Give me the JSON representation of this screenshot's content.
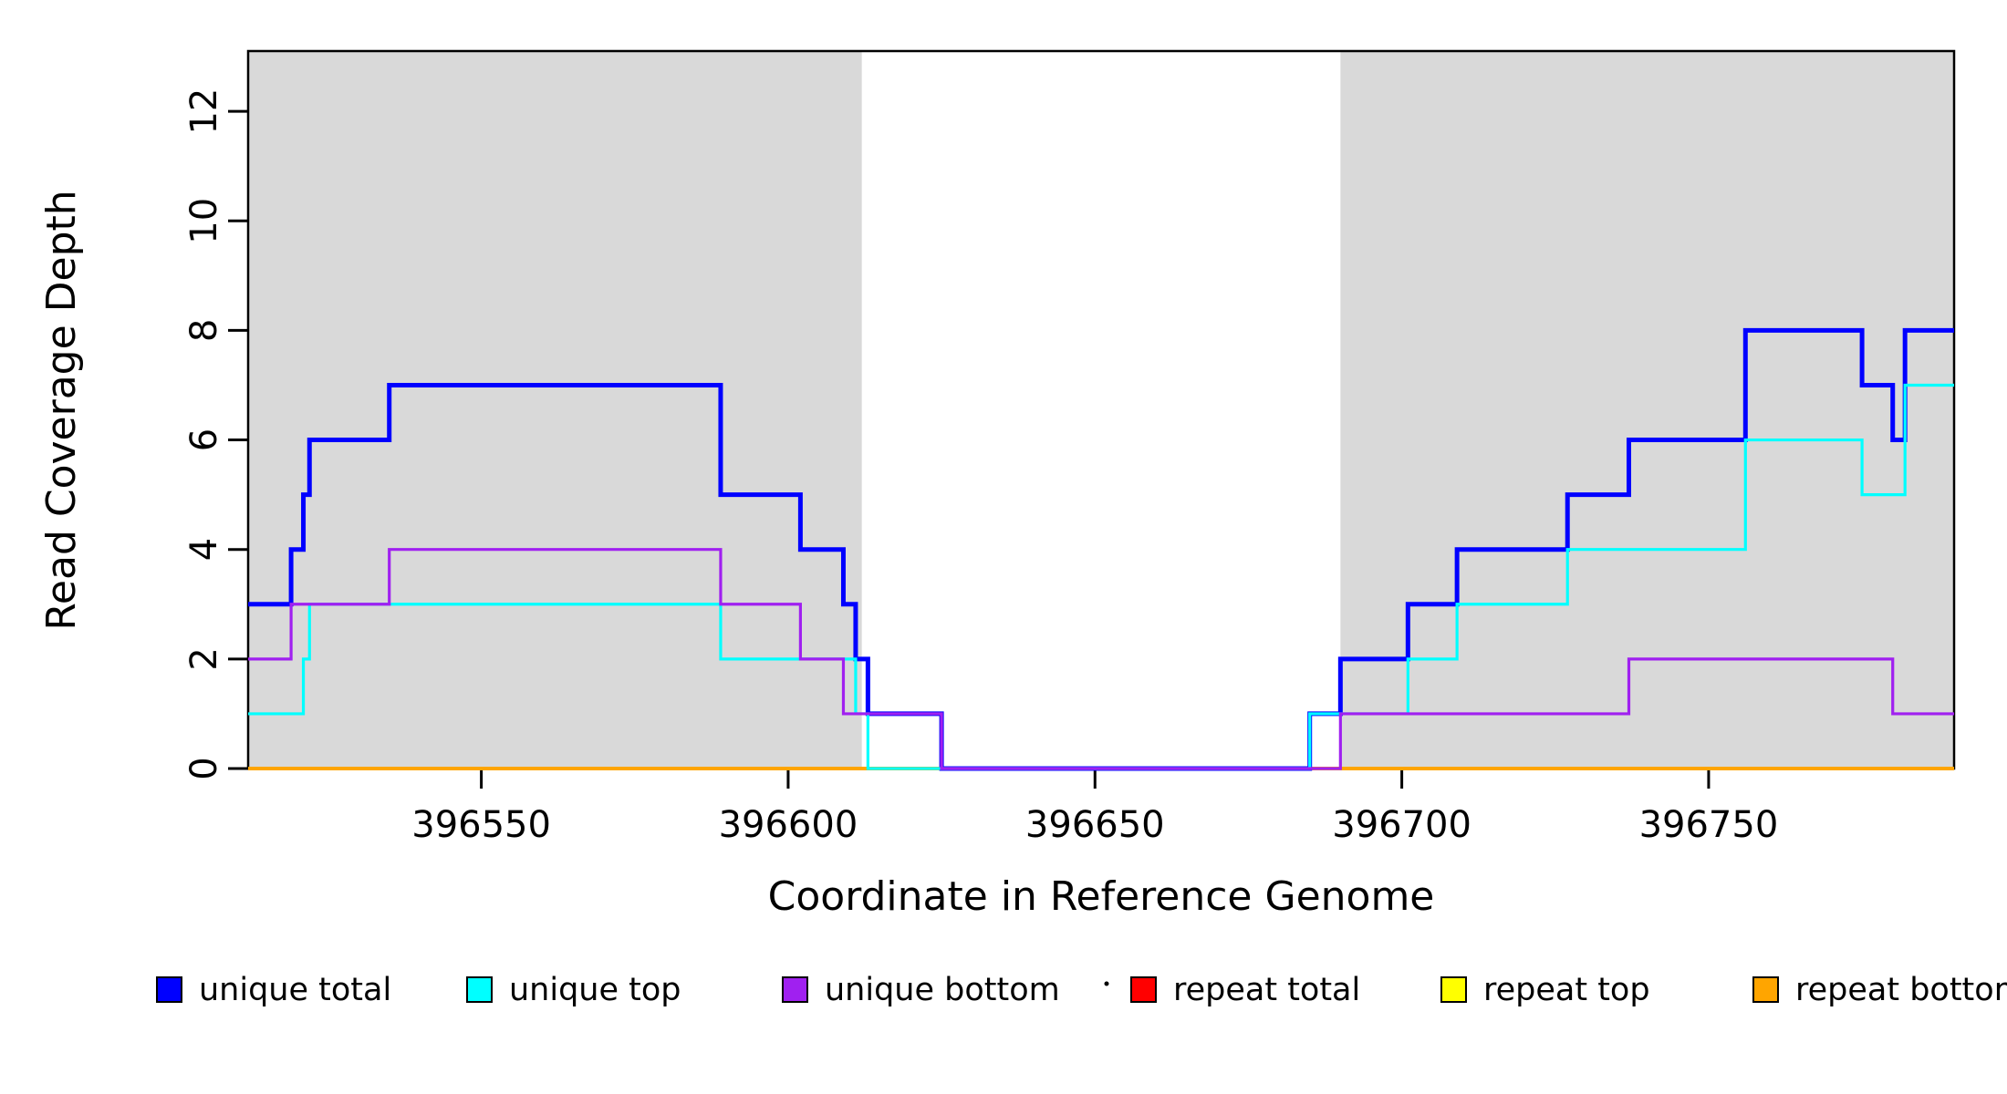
{
  "figure": {
    "background": "#FFFFFF",
    "plot_box_color": "#000000",
    "shaded_region_color": "#D9D9D9"
  },
  "chart_data": {
    "type": "line",
    "subtype": "step",
    "title": "",
    "xlabel": "Coordinate in Reference Genome",
    "ylabel": "Read Coverage Depth",
    "xlim": [
      396512,
      396790
    ],
    "ylim": [
      0,
      13.1
    ],
    "x_ticks": [
      396550,
      396600,
      396650,
      396700,
      396750
    ],
    "y_ticks": [
      0,
      2,
      4,
      6,
      8,
      10,
      12
    ],
    "grid": false,
    "legend_position": "bottom",
    "shaded_regions": [
      {
        "x0": 396512,
        "x1": 396612
      },
      {
        "x0": 396690,
        "x1": 396790
      }
    ],
    "series": [
      {
        "name": "unique total",
        "color": "#0000FF",
        "width": 5,
        "steps": [
          [
            396512,
            3
          ],
          [
            396519,
            4
          ],
          [
            396521,
            5
          ],
          [
            396522,
            6
          ],
          [
            396535,
            7
          ],
          [
            396589,
            5
          ],
          [
            396602,
            4
          ],
          [
            396609,
            3
          ],
          [
            396611,
            2
          ],
          [
            396613,
            1
          ],
          [
            396625,
            0
          ],
          [
            396685,
            1
          ],
          [
            396690,
            2
          ],
          [
            396701,
            3
          ],
          [
            396709,
            4
          ],
          [
            396727,
            5
          ],
          [
            396737,
            6
          ],
          [
            396756,
            8
          ],
          [
            396775,
            7
          ],
          [
            396780,
            6
          ],
          [
            396782,
            8
          ]
        ]
      },
      {
        "name": "unique top",
        "color": "#00FFFF",
        "width": 3.2,
        "steps": [
          [
            396512,
            1
          ],
          [
            396521,
            2
          ],
          [
            396522,
            3
          ],
          [
            396589,
            2
          ],
          [
            396611,
            1
          ],
          [
            396613,
            0
          ],
          [
            396685,
            1
          ],
          [
            396701,
            2
          ],
          [
            396709,
            3
          ],
          [
            396727,
            4
          ],
          [
            396756,
            6
          ],
          [
            396775,
            5
          ],
          [
            396782,
            7
          ]
        ]
      },
      {
        "name": "unique bottom",
        "color": "#A020F0",
        "width": 3.2,
        "steps": [
          [
            396512,
            2
          ],
          [
            396519,
            3
          ],
          [
            396535,
            4
          ],
          [
            396589,
            3
          ],
          [
            396602,
            2
          ],
          [
            396609,
            1
          ],
          [
            396625,
            0
          ],
          [
            396690,
            1
          ],
          [
            396737,
            2
          ],
          [
            396780,
            1
          ]
        ]
      },
      {
        "name": "repeat total",
        "color": "#FF0000",
        "width": 3.2,
        "steps": [
          [
            396512,
            0
          ]
        ]
      },
      {
        "name": "repeat top",
        "color": "#FFFF00",
        "width": 3.2,
        "steps": [
          [
            396512,
            0
          ]
        ]
      },
      {
        "name": "repeat bottom",
        "color": "#FFA500",
        "width": 4,
        "steps": [
          [
            396512,
            0
          ]
        ]
      }
    ],
    "draw_order": [
      "repeat total",
      "repeat top",
      "repeat bottom",
      "unique total",
      "unique top",
      "unique bottom"
    ],
    "legend_entries": [
      {
        "label": "unique total",
        "color": "#0000FF"
      },
      {
        "label": "unique top",
        "color": "#00FFFF"
      },
      {
        "label": "unique bottom",
        "color": "#A020F0"
      },
      {
        "label": "repeat total",
        "color": "#FF0000"
      },
      {
        "label": "repeat top",
        "color": "#FFFF00"
      },
      {
        "label": "repeat bottom",
        "color": "#FFA500"
      }
    ]
  }
}
